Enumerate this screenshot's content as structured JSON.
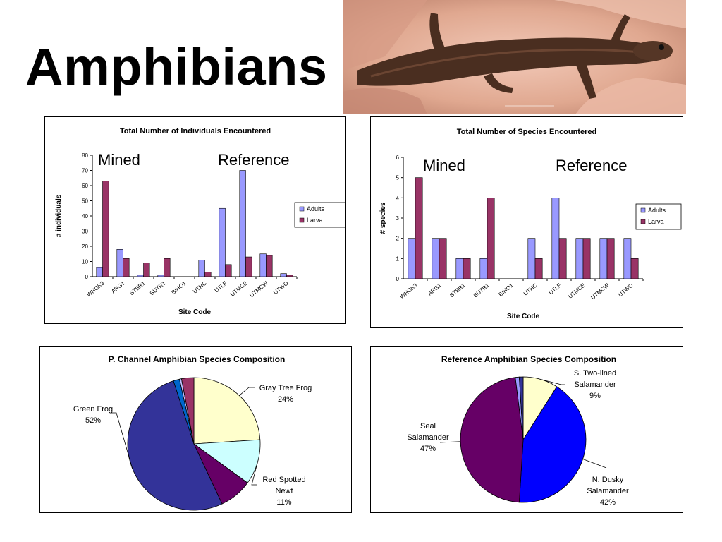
{
  "slide": {
    "title": "Amphibians"
  },
  "colors": {
    "adults": "#9999ff",
    "larva": "#993366"
  },
  "chart_data": [
    {
      "type": "bar",
      "title": "Total Number of Individuals Encountered",
      "xlabel": "Site Code",
      "ylabel": "# individuals",
      "ylim": [
        0,
        80
      ],
      "yticks": [
        0,
        10,
        20,
        30,
        40,
        50,
        60,
        70,
        80
      ],
      "categories": [
        "WHOK3",
        "ARG1",
        "STBR1",
        "SUTR1",
        "BIHO1",
        "UTHC",
        "UTLF",
        "UTMCE",
        "UTMCW",
        "UTWO"
      ],
      "series": [
        {
          "name": "Adults",
          "values": [
            6,
            18,
            1,
            1,
            0,
            11,
            45,
            70,
            15,
            2
          ]
        },
        {
          "name": "Larva",
          "values": [
            63,
            12,
            9,
            12,
            0,
            3,
            8,
            13,
            14,
            1
          ]
        }
      ],
      "annotations": [
        "Mined",
        "Reference"
      ],
      "legend": "right"
    },
    {
      "type": "bar",
      "title": "Total Number of Species Encountered",
      "xlabel": "Site Code",
      "ylabel": "# species",
      "ylim": [
        0,
        6
      ],
      "yticks": [
        0,
        1,
        2,
        3,
        4,
        5,
        6
      ],
      "categories": [
        "WHOK3",
        "ARG1",
        "STBR1",
        "SUTR1",
        "BIHO1",
        "UTHC",
        "UTLF",
        "UTMCE",
        "UTMCW",
        "UTWO"
      ],
      "series": [
        {
          "name": "Adults",
          "values": [
            2,
            2,
            1,
            1,
            0,
            2,
            4,
            2,
            2,
            2
          ]
        },
        {
          "name": "Larva",
          "values": [
            5,
            2,
            1,
            4,
            0,
            1,
            2,
            2,
            2,
            1
          ]
        }
      ],
      "annotations": [
        "Mined",
        "Reference"
      ],
      "legend": "right"
    },
    {
      "type": "pie",
      "title": "P. Channel Amphibian Species Composition",
      "slices": [
        {
          "value": 24,
          "color": "#ffffcc",
          "label": [
            "Gray Tree Frog",
            "24%"
          ]
        },
        {
          "value": 11,
          "color": "#ccffff",
          "label": [
            "Red Spotted",
            "Newt",
            "11%"
          ]
        },
        {
          "value": 8,
          "color": "#660066",
          "label": []
        },
        {
          "value": 52,
          "color": "#333399",
          "label": [
            "Green Frog",
            "52%"
          ]
        },
        {
          "value": 1.5,
          "color": "#0066cc",
          "label": []
        },
        {
          "value": 0.5,
          "color": "#c0c0ff",
          "label": []
        },
        {
          "value": 3,
          "color": "#993366",
          "label": []
        }
      ]
    },
    {
      "type": "pie",
      "title": "Reference Amphibian Species Composition",
      "slices": [
        {
          "value": 9,
          "color": "#ffffcc",
          "label": [
            "S. Two-lined",
            "Salamander",
            "9%"
          ]
        },
        {
          "value": 42,
          "color": "#0000ff",
          "label": [
            "N. Dusky",
            "Salamander",
            "42%"
          ]
        },
        {
          "value": 47,
          "color": "#660066",
          "label": [
            "Seal",
            "Salamander",
            "47%"
          ]
        },
        {
          "value": 1,
          "color": "#9999ff",
          "label": []
        },
        {
          "value": 1,
          "color": "#333399",
          "label": []
        }
      ]
    }
  ]
}
